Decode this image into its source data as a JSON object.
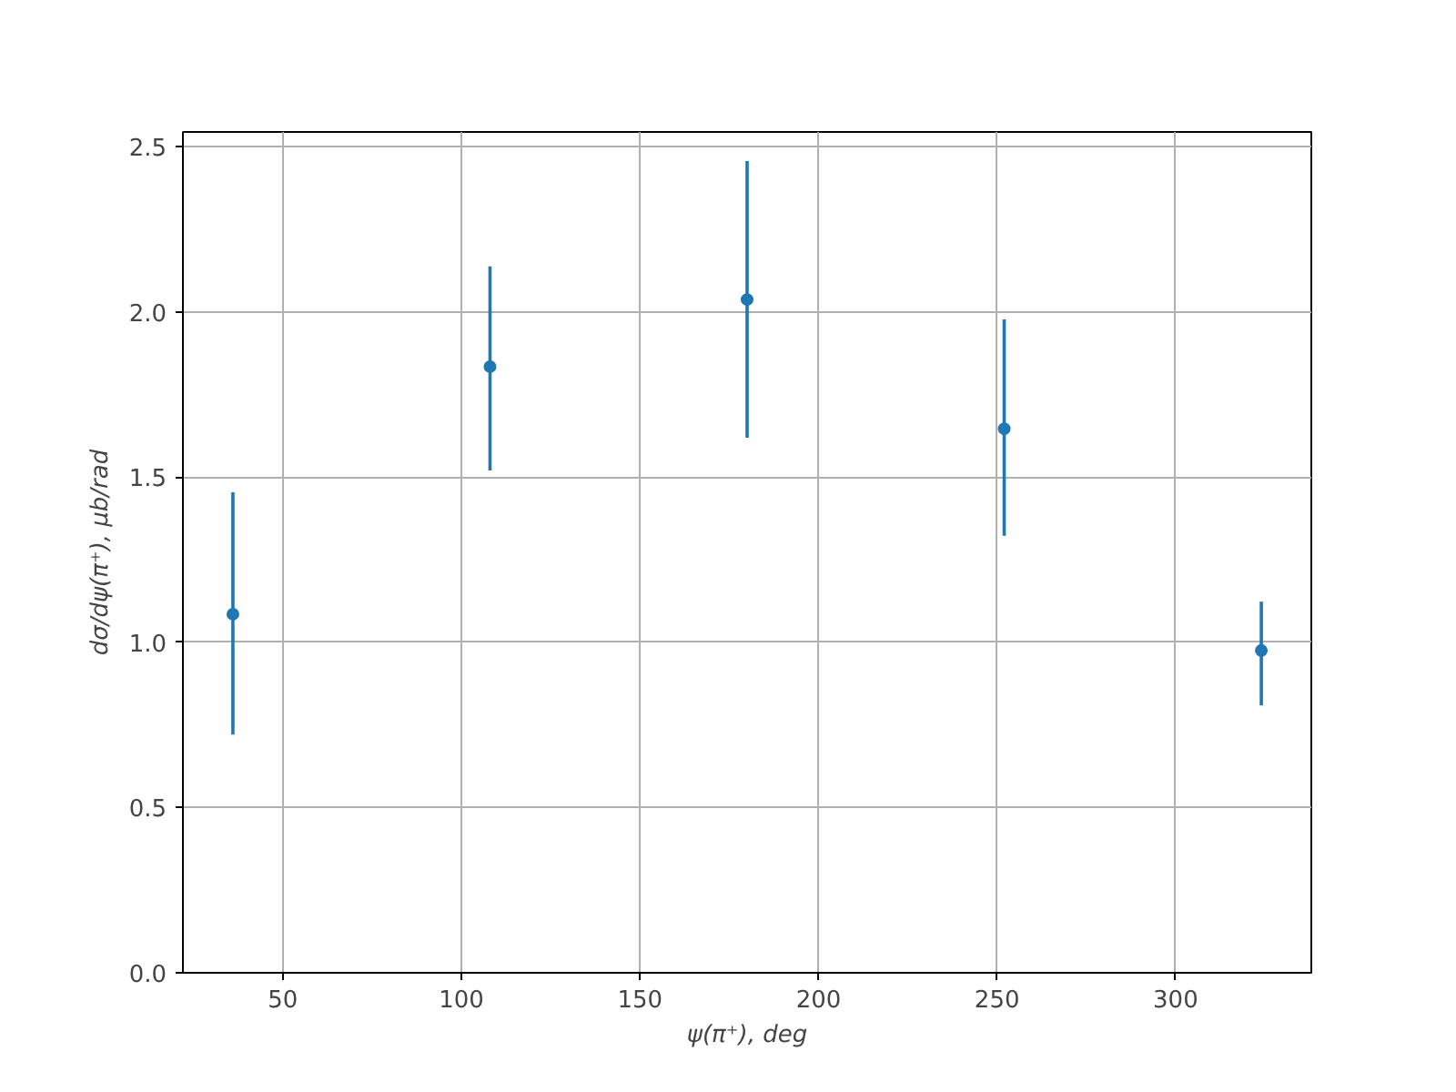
{
  "chart_data": {
    "type": "scatter",
    "xlabel": "ψ(π⁺), deg",
    "ylabel": "dσ/dψ(π⁺), μb/rad",
    "x": [
      36,
      108,
      180,
      252,
      324
    ],
    "series": [
      {
        "color": "#1f77b4",
        "values": [
          1.085,
          1.834,
          2.037,
          1.646,
          0.975
        ],
        "errors": [
          [
            0.721,
            1.454
          ],
          [
            1.52,
            2.137
          ],
          [
            1.619,
            2.456
          ],
          [
            1.322,
            1.977
          ],
          [
            0.809,
            1.123
          ]
        ]
      }
    ],
    "xlim": [
      22,
      338
    ],
    "ylim": [
      0,
      2.544
    ],
    "xticks": [
      50,
      100,
      150,
      200,
      250,
      300
    ],
    "yticks": [
      {
        "value": 0,
        "label": "0.0"
      },
      {
        "value": 0.5,
        "label": "0.5"
      },
      {
        "value": 1,
        "label": "1.0"
      },
      {
        "value": 1.5,
        "label": "1.5"
      },
      {
        "value": 2,
        "label": "2.0"
      },
      {
        "value": 2.5,
        "label": "2.5"
      }
    ],
    "grid": true,
    "marker": "circle"
  }
}
